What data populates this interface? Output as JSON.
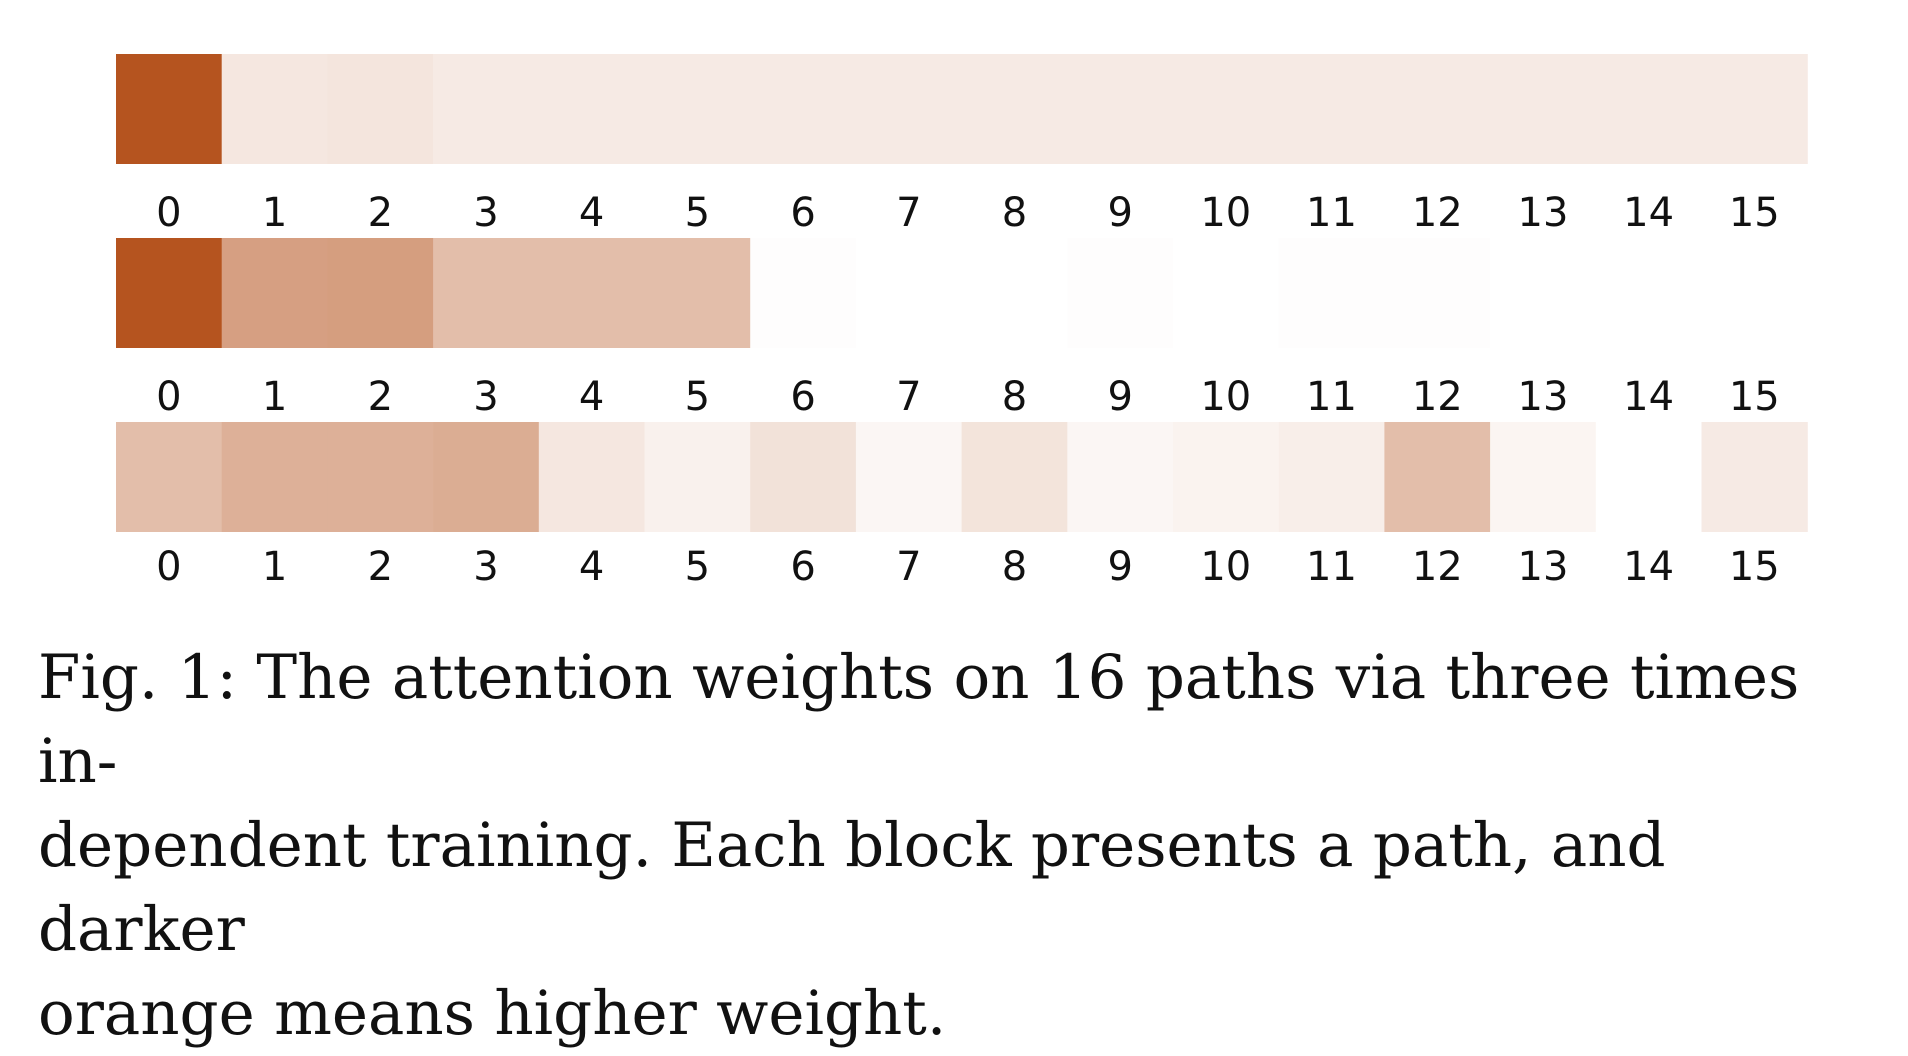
{
  "chart_data": {
    "type": "heatmap",
    "base_color": "#b5541f",
    "rows": [
      {
        "categories": [
          "0",
          "1",
          "2",
          "3",
          "4",
          "5",
          "6",
          "7",
          "8",
          "9",
          "10",
          "11",
          "12",
          "13",
          "14",
          "15"
        ],
        "values": [
          1.0,
          0.14,
          0.15,
          0.12,
          0.12,
          0.12,
          0.12,
          0.12,
          0.12,
          0.12,
          0.12,
          0.12,
          0.12,
          0.12,
          0.12,
          0.12
        ]
      },
      {
        "categories": [
          "0",
          "1",
          "2",
          "3",
          "4",
          "5",
          "6",
          "7",
          "8",
          "9",
          "10",
          "11",
          "12",
          "13",
          "14",
          "15"
        ],
        "values": [
          1.0,
          0.56,
          0.57,
          0.38,
          0.38,
          0.38,
          0.01,
          0.0,
          0.0,
          0.01,
          0.0,
          0.01,
          0.01,
          0.0,
          0.0,
          0.0
        ]
      },
      {
        "categories": [
          "0",
          "1",
          "2",
          "3",
          "4",
          "5",
          "6",
          "7",
          "8",
          "9",
          "10",
          "11",
          "12",
          "13",
          "14",
          "15"
        ],
        "values": [
          0.38,
          0.46,
          0.46,
          0.48,
          0.14,
          0.08,
          0.17,
          0.05,
          0.16,
          0.05,
          0.07,
          0.1,
          0.38,
          0.06,
          0.0,
          0.12
        ]
      }
    ]
  },
  "caption": {
    "lines": [
      "Fig. 1: The attention weights on 16 paths via three times in-",
      "dependent training. Each block presents a path, and darker",
      "orange means higher weight."
    ]
  }
}
